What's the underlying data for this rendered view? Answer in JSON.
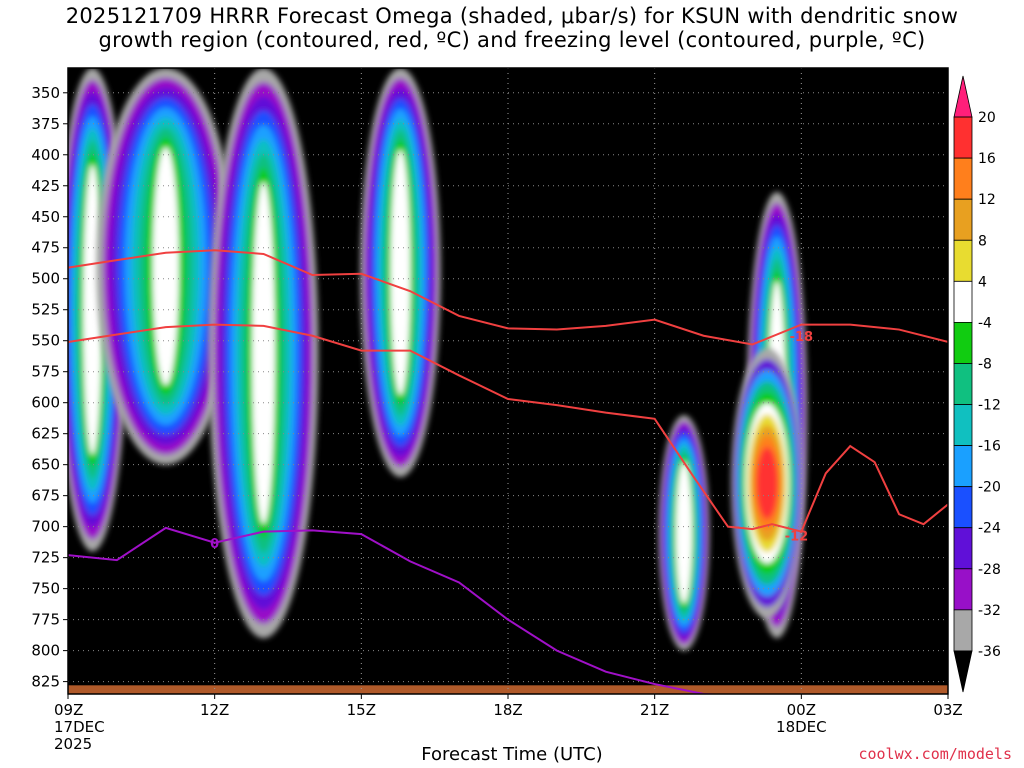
{
  "title": {
    "line1": "2025121709 HRRR Forecast Omega (shaded, μbar/s) for KSUN with dendritic snow",
    "line2": "growth region (contoured, red, ºC) and freezing level (contoured, purple, ºC)"
  },
  "xaxis_title": "Forecast Time (UTC)",
  "credit": "coolwx.com/models",
  "chart_data": {
    "type": "heatmap",
    "x": [
      "09Z",
      "12Z",
      "15Z",
      "18Z",
      "21Z",
      "00Z",
      "03Z"
    ],
    "x_sublabels": [
      [
        "17DEC",
        "2025"
      ],
      [],
      [],
      [],
      [],
      [
        "18DEC"
      ],
      []
    ],
    "x_hours": [
      0,
      3,
      6,
      9,
      12,
      15,
      18
    ],
    "y_levels": [
      350,
      375,
      400,
      425,
      450,
      475,
      500,
      525,
      550,
      575,
      600,
      625,
      650,
      675,
      700,
      725,
      750,
      775,
      800,
      825
    ],
    "ylim": [
      835,
      330
    ],
    "colorbar": {
      "labels": [
        "20",
        "16",
        "12",
        "8",
        "4",
        "-4",
        "-8",
        "-12",
        "-16",
        "-20",
        "-24",
        "-28",
        "-32",
        "-36"
      ],
      "colors": [
        "#ff1f7a",
        "#ff3030",
        "#ff7f1c",
        "#e8a020",
        "#e8dc30",
        "#ffffff",
        "#11cc11",
        "#10c080",
        "#10c0c0",
        "#1aa0ff",
        "#1a50ff",
        "#6010d8",
        "#9810c8",
        "#a8a8a8",
        "#000000"
      ]
    },
    "series": [
      {
        "name": "-12",
        "color": "#f04040",
        "x": [
          0,
          1,
          2,
          3,
          4,
          5,
          6,
          7,
          8,
          9,
          10,
          11,
          12,
          12.8,
          13.5,
          14,
          14.4,
          15,
          15.5,
          16,
          16.5,
          17,
          17.5,
          18
        ],
        "y": [
          551,
          545,
          539,
          537,
          538,
          546,
          558,
          558,
          578,
          597,
          602,
          608,
          613,
          660,
          700,
          702,
          698,
          704,
          657,
          635,
          648,
          690,
          698,
          682
        ]
      },
      {
        "name": "-18",
        "color": "#f04040",
        "x": [
          0,
          1,
          2,
          3,
          4,
          5,
          6,
          7,
          8,
          9,
          10,
          11,
          12,
          13,
          14,
          15,
          16,
          17,
          18
        ],
        "y": [
          491,
          485,
          479,
          477,
          480,
          497,
          496,
          510,
          530,
          540,
          541,
          538,
          533,
          546,
          553,
          537,
          537,
          541,
          551
        ]
      },
      {
        "name": "0",
        "color": "#a010c8",
        "x": [
          0,
          1,
          2,
          3,
          4,
          5,
          6,
          7,
          8,
          9,
          10,
          11,
          12,
          13,
          14
        ],
        "y": [
          723,
          727,
          701,
          713,
          704,
          703,
          706,
          728,
          745,
          775,
          800,
          817,
          827,
          835,
          837
        ]
      }
    ],
    "contour_labels": [
      {
        "text": "-18",
        "x": 15.0,
        "y": 546
      },
      {
        "text": "-12",
        "x": 14.9,
        "y": 707
      },
      {
        "text": "0",
        "x": 3.0,
        "y": 713
      }
    ],
    "omega_cores": [
      {
        "x": 0.5,
        "p_top": 330,
        "p_bot": 720,
        "w": 0.6
      },
      {
        "x": 2.0,
        "p_top": 330,
        "p_bot": 650,
        "w": 1.3
      },
      {
        "x": 4.0,
        "p_top": 330,
        "p_bot": 790,
        "w": 1.0
      },
      {
        "x": 6.8,
        "p_top": 330,
        "p_bot": 660,
        "w": 0.7
      },
      {
        "x": 14.5,
        "p_top": 430,
        "p_bot": 790,
        "w": 0.5
      },
      {
        "x": 12.6,
        "p_top": 610,
        "p_bot": 800,
        "w": 0.4
      }
    ]
  }
}
